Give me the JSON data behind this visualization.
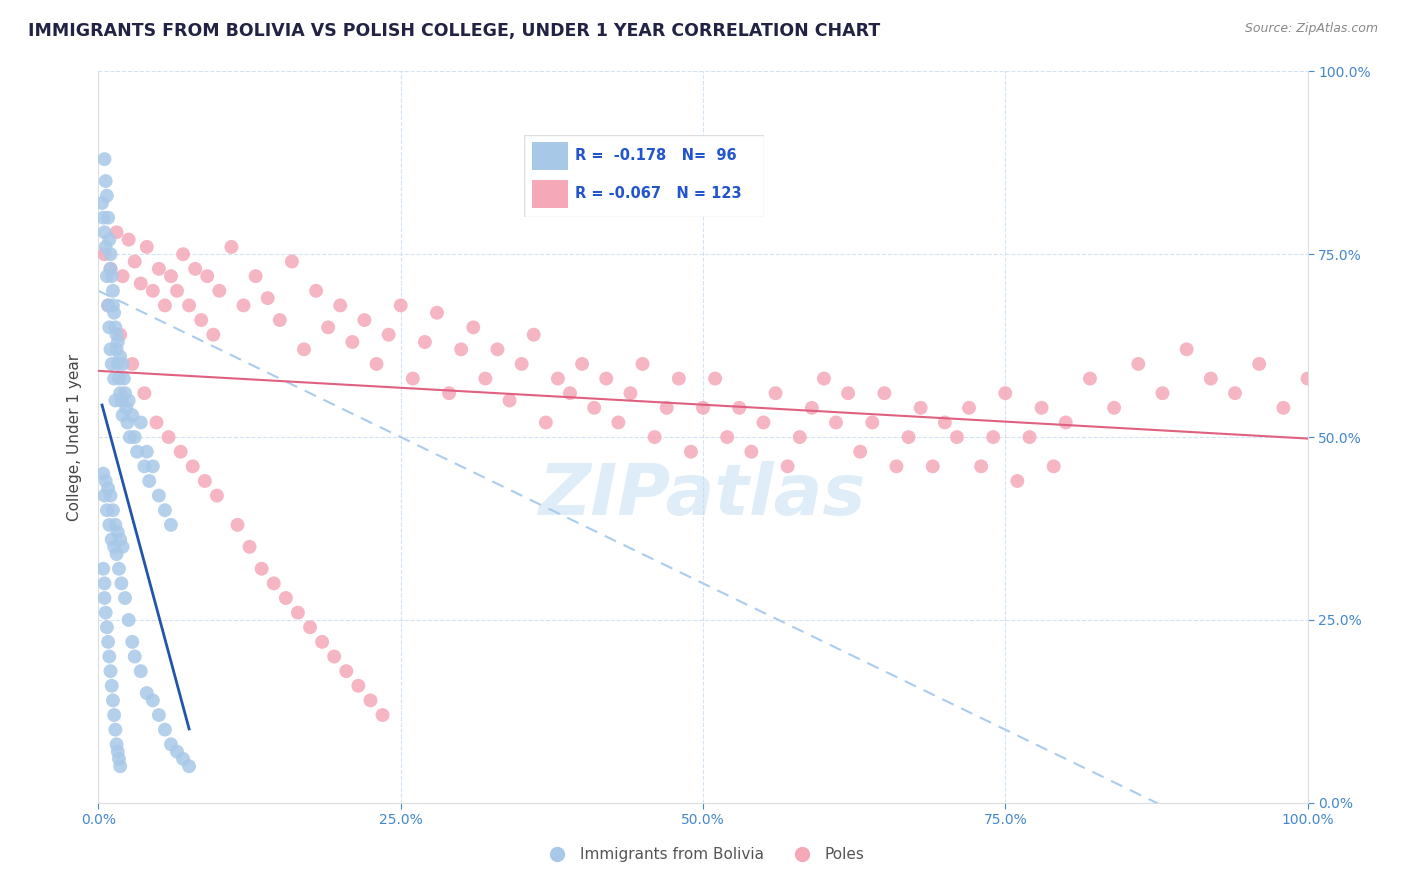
{
  "title": "IMMIGRANTS FROM BOLIVIA VS POLISH COLLEGE, UNDER 1 YEAR CORRELATION CHART",
  "source": "Source: ZipAtlas.com",
  "ylabel": "College, Under 1 year",
  "watermark": "ZIPatlas",
  "legend_label1": "Immigrants from Bolivia",
  "legend_label2": "Poles",
  "blue_color": "#a8c8e8",
  "pink_color": "#f4a8b8",
  "blue_line_color": "#2255aa",
  "pink_line_color": "#e06080",
  "dashed_line_color": "#aaccee",
  "xmin": 0.0,
  "xmax": 1.0,
  "ymin": 0.0,
  "ymax": 1.0,
  "blue_x": [
    0.003,
    0.004,
    0.005,
    0.005,
    0.006,
    0.006,
    0.007,
    0.007,
    0.008,
    0.008,
    0.009,
    0.009,
    0.01,
    0.01,
    0.01,
    0.011,
    0.011,
    0.012,
    0.012,
    0.013,
    0.013,
    0.014,
    0.014,
    0.015,
    0.015,
    0.016,
    0.016,
    0.017,
    0.018,
    0.018,
    0.019,
    0.02,
    0.02,
    0.021,
    0.022,
    0.023,
    0.024,
    0.025,
    0.026,
    0.028,
    0.03,
    0.032,
    0.035,
    0.038,
    0.04,
    0.042,
    0.045,
    0.05,
    0.055,
    0.06,
    0.004,
    0.005,
    0.006,
    0.007,
    0.008,
    0.009,
    0.01,
    0.011,
    0.012,
    0.013,
    0.014,
    0.015,
    0.016,
    0.017,
    0.018,
    0.019,
    0.02,
    0.022,
    0.025,
    0.028,
    0.03,
    0.035,
    0.04,
    0.045,
    0.05,
    0.055,
    0.06,
    0.065,
    0.07,
    0.075,
    0.004,
    0.005,
    0.005,
    0.006,
    0.007,
    0.008,
    0.009,
    0.01,
    0.011,
    0.012,
    0.013,
    0.014,
    0.015,
    0.016,
    0.017,
    0.018
  ],
  "blue_y": [
    0.82,
    0.8,
    0.88,
    0.78,
    0.85,
    0.76,
    0.83,
    0.72,
    0.8,
    0.68,
    0.77,
    0.65,
    0.75,
    0.73,
    0.62,
    0.72,
    0.6,
    0.7,
    0.68,
    0.67,
    0.58,
    0.65,
    0.55,
    0.64,
    0.62,
    0.63,
    0.6,
    0.58,
    0.61,
    0.56,
    0.55,
    0.6,
    0.53,
    0.58,
    0.56,
    0.54,
    0.52,
    0.55,
    0.5,
    0.53,
    0.5,
    0.48,
    0.52,
    0.46,
    0.48,
    0.44,
    0.46,
    0.42,
    0.4,
    0.38,
    0.45,
    0.42,
    0.44,
    0.4,
    0.43,
    0.38,
    0.42,
    0.36,
    0.4,
    0.35,
    0.38,
    0.34,
    0.37,
    0.32,
    0.36,
    0.3,
    0.35,
    0.28,
    0.25,
    0.22,
    0.2,
    0.18,
    0.15,
    0.14,
    0.12,
    0.1,
    0.08,
    0.07,
    0.06,
    0.05,
    0.32,
    0.3,
    0.28,
    0.26,
    0.24,
    0.22,
    0.2,
    0.18,
    0.16,
    0.14,
    0.12,
    0.1,
    0.08,
    0.07,
    0.06,
    0.05
  ],
  "pink_x": [
    0.005,
    0.01,
    0.015,
    0.02,
    0.025,
    0.03,
    0.035,
    0.04,
    0.045,
    0.05,
    0.055,
    0.06,
    0.065,
    0.07,
    0.075,
    0.08,
    0.085,
    0.09,
    0.095,
    0.1,
    0.11,
    0.12,
    0.13,
    0.14,
    0.15,
    0.16,
    0.17,
    0.18,
    0.19,
    0.2,
    0.21,
    0.22,
    0.23,
    0.24,
    0.25,
    0.26,
    0.27,
    0.28,
    0.29,
    0.3,
    0.31,
    0.32,
    0.33,
    0.34,
    0.35,
    0.36,
    0.37,
    0.38,
    0.39,
    0.4,
    0.41,
    0.42,
    0.43,
    0.44,
    0.45,
    0.46,
    0.47,
    0.48,
    0.49,
    0.5,
    0.51,
    0.52,
    0.53,
    0.54,
    0.55,
    0.56,
    0.57,
    0.58,
    0.59,
    0.6,
    0.61,
    0.62,
    0.63,
    0.64,
    0.65,
    0.66,
    0.67,
    0.68,
    0.69,
    0.7,
    0.71,
    0.72,
    0.73,
    0.74,
    0.75,
    0.76,
    0.77,
    0.78,
    0.79,
    0.8,
    0.82,
    0.84,
    0.86,
    0.88,
    0.9,
    0.92,
    0.94,
    0.96,
    0.98,
    1.0,
    0.008,
    0.018,
    0.028,
    0.038,
    0.048,
    0.058,
    0.068,
    0.078,
    0.088,
    0.098,
    0.115,
    0.125,
    0.135,
    0.145,
    0.155,
    0.165,
    0.175,
    0.185,
    0.195,
    0.205,
    0.215,
    0.225,
    0.235
  ],
  "pink_y": [
    0.75,
    0.73,
    0.78,
    0.72,
    0.77,
    0.74,
    0.71,
    0.76,
    0.7,
    0.73,
    0.68,
    0.72,
    0.7,
    0.75,
    0.68,
    0.73,
    0.66,
    0.72,
    0.64,
    0.7,
    0.76,
    0.68,
    0.72,
    0.69,
    0.66,
    0.74,
    0.62,
    0.7,
    0.65,
    0.68,
    0.63,
    0.66,
    0.6,
    0.64,
    0.68,
    0.58,
    0.63,
    0.67,
    0.56,
    0.62,
    0.65,
    0.58,
    0.62,
    0.55,
    0.6,
    0.64,
    0.52,
    0.58,
    0.56,
    0.6,
    0.54,
    0.58,
    0.52,
    0.56,
    0.6,
    0.5,
    0.54,
    0.58,
    0.48,
    0.54,
    0.58,
    0.5,
    0.54,
    0.48,
    0.52,
    0.56,
    0.46,
    0.5,
    0.54,
    0.58,
    0.52,
    0.56,
    0.48,
    0.52,
    0.56,
    0.46,
    0.5,
    0.54,
    0.46,
    0.52,
    0.5,
    0.54,
    0.46,
    0.5,
    0.56,
    0.44,
    0.5,
    0.54,
    0.46,
    0.52,
    0.58,
    0.54,
    0.6,
    0.56,
    0.62,
    0.58,
    0.56,
    0.6,
    0.54,
    0.58,
    0.68,
    0.64,
    0.6,
    0.56,
    0.52,
    0.5,
    0.48,
    0.46,
    0.44,
    0.42,
    0.38,
    0.35,
    0.32,
    0.3,
    0.28,
    0.26,
    0.24,
    0.22,
    0.2,
    0.18,
    0.16,
    0.14,
    0.12
  ],
  "title_fontsize": 12.5,
  "tick_fontsize": 10,
  "label_fontsize": 11
}
